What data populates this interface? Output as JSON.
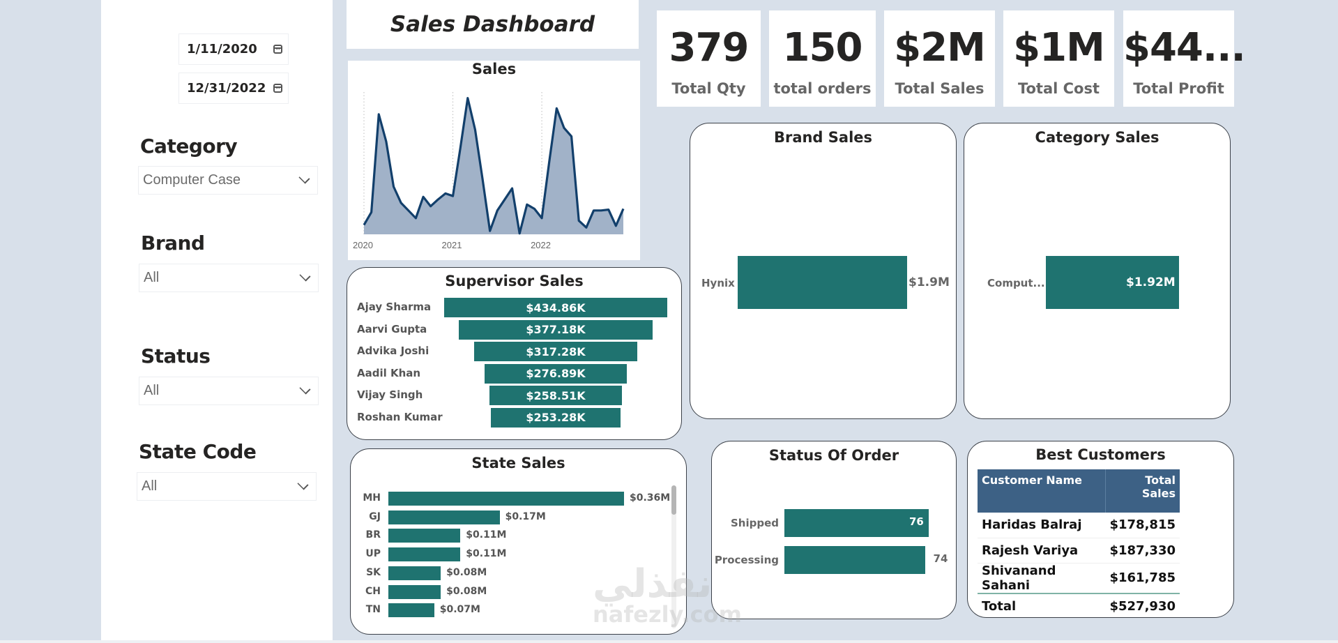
{
  "title": "Sales Dashboard",
  "filters": {
    "date_start": "1/11/2020",
    "date_end": "12/31/2022",
    "slicers": [
      {
        "label": "Category",
        "value": "Computer Case"
      },
      {
        "label": "Brand",
        "value": "All"
      },
      {
        "label": "Status",
        "value": "All"
      },
      {
        "label": "State Code",
        "value": "All"
      }
    ]
  },
  "kpis": [
    {
      "value": "379",
      "label": "Total Qty"
    },
    {
      "value": "150",
      "label": "total orders"
    },
    {
      "value": "$2M",
      "label": "Total Sales"
    },
    {
      "value": "$1M",
      "label": "Total Cost"
    },
    {
      "value": "$44...",
      "label": "Total Profit"
    }
  ],
  "colors": {
    "bar": "#1f7370",
    "line": "#123f6b",
    "area": "#a1b2c8",
    "table_header": "#3d6185",
    "background": "#d8e0ea"
  },
  "watermark": {
    "arabic": "نفذلي",
    "latin": "nafezly.com"
  },
  "chart_data": [
    {
      "type": "area",
      "title": "Sales",
      "x_ticks": [
        "2020",
        "2021",
        "2022"
      ],
      "x": [
        "2020-01",
        "2020-02",
        "2020-03",
        "2020-04",
        "2020-05",
        "2020-06",
        "2020-07",
        "2020-08",
        "2020-09",
        "2020-10",
        "2020-11",
        "2020-12",
        "2021-01",
        "2021-02",
        "2021-03",
        "2021-04",
        "2021-05",
        "2021-06",
        "2021-07",
        "2021-08",
        "2021-09",
        "2021-10",
        "2021-11",
        "2021-12",
        "2022-01",
        "2022-02",
        "2022-03",
        "2022-04",
        "2022-05",
        "2022-06",
        "2022-07",
        "2022-08",
        "2022-09",
        "2022-10",
        "2022-11",
        "2022-12"
      ],
      "values": [
        11,
        26,
        141,
        109,
        56,
        37,
        28,
        19,
        44,
        33,
        41,
        48,
        45,
        101,
        160,
        123,
        65,
        4,
        28,
        41,
        54,
        1,
        35,
        30,
        19,
        85,
        148,
        125,
        115,
        16,
        8,
        28,
        28,
        29,
        10,
        30
      ],
      "value_unit": "approx. $K (no y-axis shown)",
      "grid": "vertical dotted at year ticks"
    },
    {
      "type": "bar",
      "orientation": "funnel",
      "title": "Supervisor Sales",
      "categories": [
        "Ajay Sharma",
        "Aarvi Gupta",
        "Advika Joshi",
        "Aadil Khan",
        "Vijay Singh",
        "Roshan Kumar"
      ],
      "values": [
        434.86,
        377.18,
        317.28,
        276.89,
        258.51,
        253.28
      ],
      "labels": [
        "$434.86K",
        "$377.18K",
        "$317.28K",
        "$276.89K",
        "$258.51K",
        "$253.28K"
      ]
    },
    {
      "type": "bar",
      "orientation": "horizontal",
      "title": "State Sales",
      "categories": [
        "MH",
        "GJ",
        "BR",
        "UP",
        "SK",
        "CH",
        "TN"
      ],
      "values": [
        0.36,
        0.17,
        0.11,
        0.11,
        0.08,
        0.08,
        0.07
      ],
      "labels": [
        "$0.36M",
        "$0.17M",
        "$0.11M",
        "$0.11M",
        "$0.08M",
        "$0.08M",
        "$0.07M"
      ]
    },
    {
      "type": "bar",
      "orientation": "horizontal",
      "title": "Brand Sales",
      "categories": [
        "Hynix"
      ],
      "values": [
        1.9
      ],
      "labels": [
        "$1.9M"
      ]
    },
    {
      "type": "bar",
      "orientation": "horizontal",
      "title": "Category Sales",
      "categories": [
        "Comput..."
      ],
      "values": [
        1.92
      ],
      "labels": [
        "$1.92M"
      ]
    },
    {
      "type": "bar",
      "orientation": "horizontal",
      "title": "Status Of Order",
      "categories": [
        "Shipped",
        "Processing"
      ],
      "values": [
        76,
        74
      ],
      "labels": [
        "76",
        "74"
      ]
    },
    {
      "type": "table",
      "title": "Best Customers",
      "columns": [
        "Customer Name",
        "Total Sales"
      ],
      "rows": [
        [
          "Haridas Balraj",
          "$178,815"
        ],
        [
          "Rajesh Variya",
          "$187,330"
        ],
        [
          "Shivanand Sahani",
          "$161,785"
        ]
      ],
      "total": [
        "Total",
        "$527,930"
      ]
    }
  ]
}
